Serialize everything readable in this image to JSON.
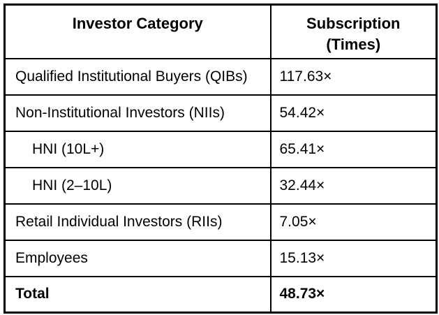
{
  "chart_data": {
    "type": "table",
    "title": "",
    "columns": [
      "Investor Category",
      "Subscription (Times)"
    ],
    "rows": [
      [
        "Qualified Institutional Buyers (QIBs)",
        "117.63×"
      ],
      [
        "Non-Institutional Investors (NIIs)",
        "54.42×"
      ],
      [
        "HNI (10L+)",
        "65.41×"
      ],
      [
        "HNI (2–10L)",
        "32.44×"
      ],
      [
        "Retail Individual Investors (RIIs)",
        "7.05×"
      ],
      [
        "Employees",
        "15.13×"
      ],
      [
        "Total",
        "48.73×"
      ]
    ],
    "subscription_values_numeric": [
      117.63,
      54.42,
      65.41,
      32.44,
      7.05,
      15.13,
      48.73
    ],
    "layout": {
      "grid": "full-borders",
      "header_bold": true,
      "total_row_bold": true
    }
  },
  "table": {
    "header": {
      "investor_category": "Investor Category",
      "subscription_line1": "Subscription",
      "subscription_line2": "(Times)"
    },
    "rows": [
      {
        "category": "Qualified Institutional Buyers (QIBs)",
        "subscription": "117.63×"
      },
      {
        "category": "Non-Institutional Investors (NIIs)",
        "subscription": "54.42×"
      },
      {
        "category": "HNI (10L+)",
        "subscription": "65.41×"
      },
      {
        "category": "HNI (2–10L)",
        "subscription": "32.44×"
      },
      {
        "category": "Retail Individual Investors (RIIs)",
        "subscription": "7.05×"
      },
      {
        "category": "Employees",
        "subscription": "15.13×"
      },
      {
        "category": "Total",
        "subscription": "48.73×"
      }
    ],
    "colors": {
      "border": "#000000",
      "text": "#000000",
      "background": "#ffffff"
    }
  }
}
